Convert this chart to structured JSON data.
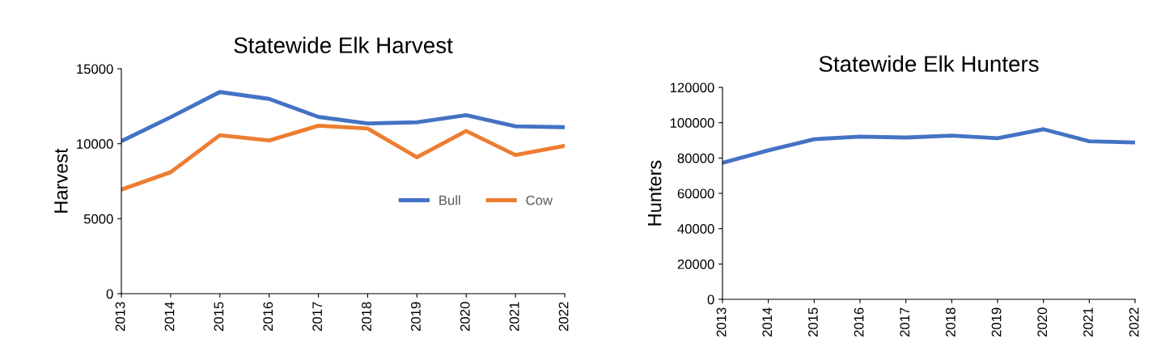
{
  "chart_data": [
    {
      "type": "line",
      "title": "Statewide Elk Harvest",
      "ylabel": "Harvest",
      "categories": [
        "2013",
        "2014",
        "2015",
        "2016",
        "2017",
        "2018",
        "2019",
        "2020",
        "2021",
        "2022"
      ],
      "series": [
        {
          "name": "Bull",
          "color": "#4472c4",
          "values": [
            10170,
            11770,
            13450,
            12990,
            11790,
            11350,
            11430,
            11900,
            11160,
            11100
          ]
        },
        {
          "name": "Cow",
          "color": "#ed7d31",
          "values": [
            6940,
            8100,
            10570,
            10220,
            11200,
            11010,
            9100,
            10850,
            9250,
            9860
          ]
        }
      ],
      "ylim": [
        0,
        15000
      ],
      "yticks": [
        0,
        5000,
        10000,
        15000
      ],
      "grid": false,
      "legend": "right",
      "marker": "none"
    },
    {
      "type": "line",
      "title": "Statewide Elk Hunters",
      "ylabel": "Hunters",
      "categories": [
        "2013",
        "2014",
        "2015",
        "2016",
        "2017",
        "2018",
        "2019",
        "2020",
        "2021",
        "2022"
      ],
      "series": [
        {
          "color": "#4472c4",
          "values": [
            77300,
            84300,
            90650,
            92150,
            91600,
            92700,
            91200,
            96300,
            89500,
            88800
          ]
        }
      ],
      "ylim": [
        0,
        120000
      ],
      "yticks": [
        0,
        20000,
        40000,
        60000,
        80000,
        100000,
        120000
      ],
      "grid": false,
      "legend": false,
      "marker": "none"
    }
  ]
}
